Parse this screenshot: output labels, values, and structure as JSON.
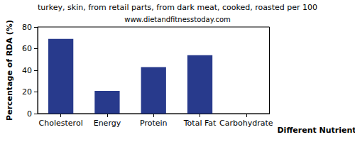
{
  "chart_data": {
    "type": "bar",
    "title": "turkey, skin, from retail parts, from dark meat, cooked, roasted per 100",
    "subtitle": "www.dietandfitnesstoday.com",
    "x_label": "Different Nutrients",
    "y_label": "Percentage of RDA (%)",
    "categories": [
      "Cholesterol",
      "Energy",
      "Protein",
      "Total Fat",
      "Carbohydrate"
    ],
    "values": [
      69,
      21,
      43,
      54,
      0
    ],
    "color": "#283a8c",
    "ylim": [
      0,
      80
    ],
    "yticks": [
      0,
      20,
      40,
      60,
      80
    ],
    "grid": false
  }
}
